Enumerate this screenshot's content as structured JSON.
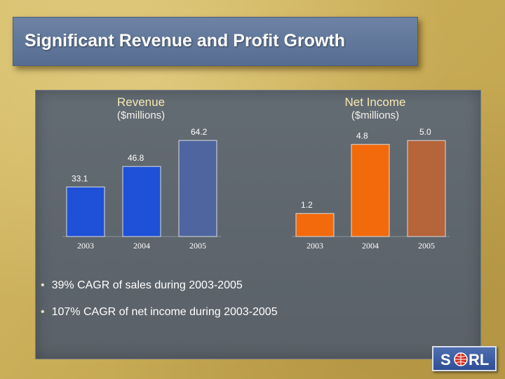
{
  "slide": {
    "title": "Significant Revenue and Profit Growth"
  },
  "chart_data": [
    {
      "type": "bar",
      "title": "Revenue",
      "subtitle": "($millions)",
      "categories": [
        "2003",
        "2004",
        "2005"
      ],
      "values": [
        33.1,
        46.8,
        64.2
      ],
      "value_labels": [
        "33.1",
        "46.8",
        "64.2"
      ],
      "ylim": [
        0,
        68
      ],
      "grid": false,
      "bar_colors": [
        "#1f50d8",
        "#1f50d8",
        "#4f659f"
      ]
    },
    {
      "type": "bar",
      "title": "Net Income",
      "subtitle": "($millions)",
      "categories": [
        "2003",
        "2004",
        "2005"
      ],
      "values": [
        1.2,
        4.8,
        5.0
      ],
      "value_labels": [
        "1.2",
        "4.8",
        "5.0"
      ],
      "ylim": [
        0,
        5.3
      ],
      "grid": false,
      "bar_colors": [
        "#f26a0c",
        "#f26a0c",
        "#b6643a"
      ]
    }
  ],
  "bullets": [
    "39% CAGR of sales during 2003-2005",
    "107% CAGR of net income during 2003-2005"
  ],
  "logo": {
    "text_left": "S",
    "text_right": "RL",
    "colors": {
      "text": "#ffffff",
      "globe": "#d42a1e"
    }
  }
}
